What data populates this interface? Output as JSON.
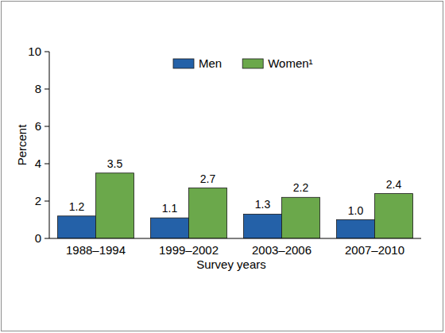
{
  "chart_data": {
    "type": "bar",
    "x_label": "Survey years",
    "y_label": "Percent",
    "categories": [
      "1988–1994",
      "1999–2002",
      "2003–2006",
      "2007–2010"
    ],
    "series": [
      {
        "name": "Men",
        "color": "#2461a8",
        "values": [
          1.2,
          1.1,
          1.3,
          1.0
        ],
        "value_labels": [
          "1.2",
          "1.1",
          "1.3",
          "1.0"
        ]
      },
      {
        "name": "Women¹",
        "color": "#6ba84b",
        "values": [
          3.5,
          2.7,
          2.2,
          2.4
        ],
        "value_labels": [
          "3.5",
          "2.7",
          "2.2",
          "2.4"
        ]
      }
    ],
    "ylim": [
      0,
      10
    ],
    "yticks": [
      0,
      2,
      4,
      6,
      8,
      10
    ],
    "grid": false,
    "legend": "top",
    "data_labels": true
  }
}
